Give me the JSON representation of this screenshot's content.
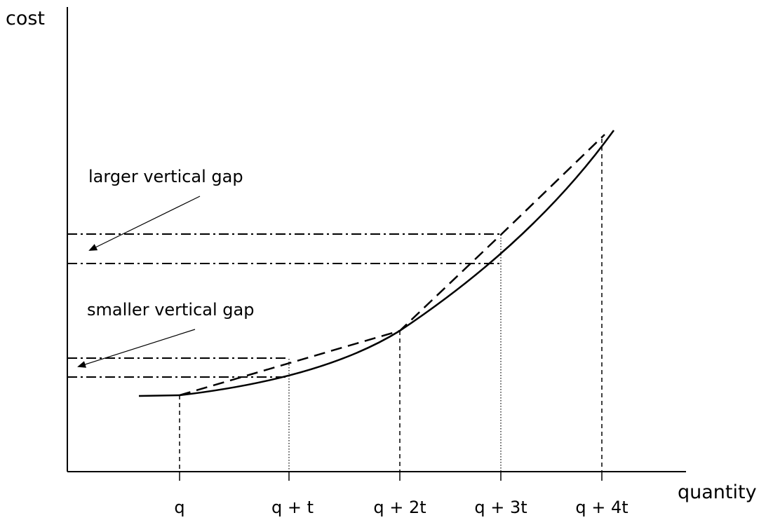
{
  "axes": {
    "y_label": "cost",
    "x_label": "quantity"
  },
  "ticks": [
    "q",
    "q + t",
    "q + 2t",
    "q + 3t",
    "q + 4t"
  ],
  "annotations": {
    "larger_gap": "larger vertical gap",
    "smaller_gap": "smaller vertical gap"
  }
}
